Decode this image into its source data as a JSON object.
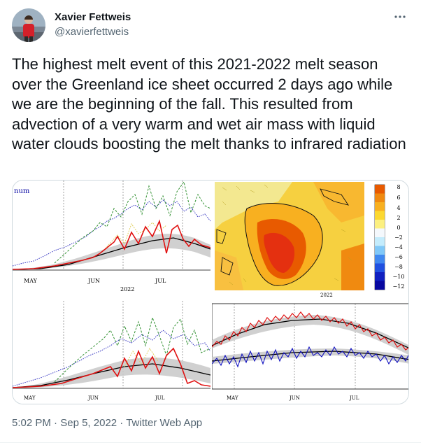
{
  "author": {
    "display_name": "Xavier Fettweis",
    "handle": "@xavierfettweis"
  },
  "tweet_text": "The highest melt event of this 2021-2022 melt season over the Greenland ice sheet occurred 2 days ago while we are the beginning of the fall. This resulted from advection of a very warm and wet air mass with liquid water clouds boosting the melt thanks to infrared radiation",
  "media": {
    "panel_top_left": {
      "corner_label": "num",
      "year_label": "2022",
      "month_labels": [
        "MAY",
        "JUN",
        "JUL"
      ]
    },
    "panel_map": {
      "year_label": "2022",
      "colorbar_ticks": [
        "8",
        "6",
        "4",
        "2",
        "0",
        "−2",
        "−4",
        "−6",
        "−8",
        "−10",
        "−12"
      ],
      "colorbar_colors": [
        "#e85a00",
        "#f08a10",
        "#f8b020",
        "#fcd830",
        "#fcf080",
        "#f4f8fc",
        "#c4ecfc",
        "#80c8f8",
        "#4088f0",
        "#2050e0",
        "#1020c0",
        "#0808a0"
      ]
    },
    "panel_bottom_left": {
      "month_labels": [
        "MAY",
        "JUN",
        "JUL"
      ]
    },
    "panel_bottom_right": {
      "month_labels": [
        "MAY",
        "JUN",
        "JUL"
      ]
    }
  },
  "footer": {
    "time": "5:02 PM",
    "separator": " · ",
    "date": "Sep 5, 2022",
    "source": "Twitter Web App"
  },
  "colors": {
    "name": "#0f1419",
    "secondary": "#536471",
    "avatar_jacket": "#d4202a"
  }
}
